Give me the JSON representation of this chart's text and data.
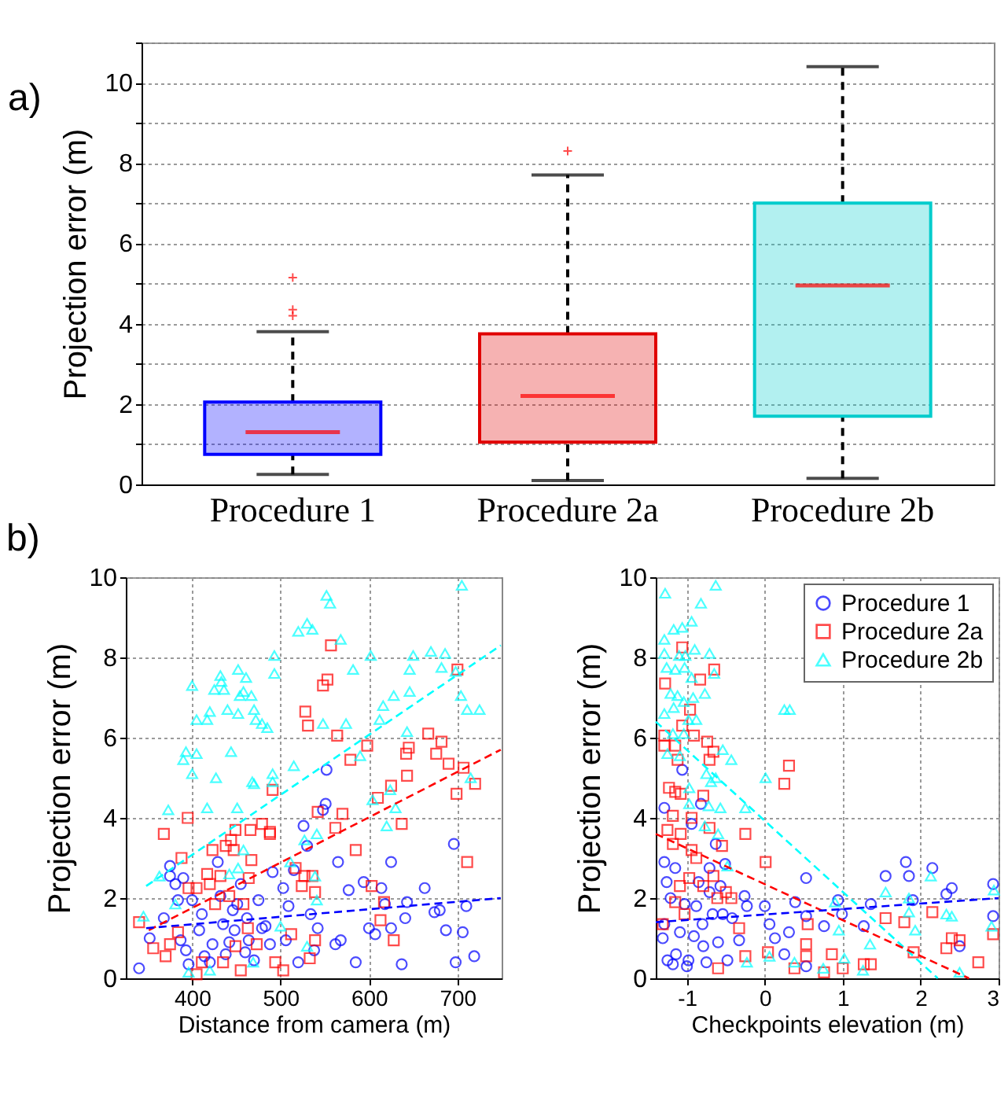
{
  "chart_data": [
    {
      "type": "box",
      "annotations": [
        "a)"
      ],
      "ylabel": "Projection error (m)",
      "categories": [
        "Procedure 1",
        "Procedure 2a",
        "Procedure 2b"
      ],
      "colors": [
        "#0000ff",
        "#e00000",
        "#00cccc"
      ],
      "boxes": [
        {
          "low": 0.25,
          "q1": 0.75,
          "median": 1.3,
          "q3": 2.05,
          "high": 3.8,
          "outliers": [
            4.2,
            4.35,
            5.15
          ]
        },
        {
          "low": 0.1,
          "q1": 1.05,
          "median": 2.2,
          "q3": 3.75,
          "high": 7.7,
          "outliers": [
            8.3
          ]
        },
        {
          "low": 0.15,
          "q1": 1.7,
          "median": 4.95,
          "q3": 7.0,
          "high": 10.4
        }
      ],
      "ylim": [
        0,
        11
      ],
      "yticks": [
        0,
        {
          "value": 1,
          "label": null
        },
        2,
        {
          "value": 3,
          "label": null
        },
        4,
        {
          "value": 5,
          "label": null
        },
        6,
        {
          "value": 7,
          "label": null
        },
        8,
        {
          "value": 9,
          "label": null
        },
        10,
        {
          "value": 11,
          "label": null
        }
      ],
      "grid": "y"
    },
    {
      "type": "scatter",
      "annotations": [
        "b)"
      ],
      "xlabel": "Distance from camera (m)",
      "ylabel": "Projection error (m)",
      "xlim": [
        325,
        750
      ],
      "xticks": [
        400,
        500,
        600,
        700
      ],
      "ylim": [
        0,
        10
      ],
      "yticks": [
        0,
        2,
        4,
        6,
        8,
        10
      ],
      "grid": true,
      "series": [
        {
          "color": "#0000ff",
          "marker": "circle",
          "x": [
            340,
            352,
            368,
            375,
            375,
            381,
            384,
            390,
            387,
            393,
            396,
            400,
            408,
            411,
            414,
            420,
            423,
            429,
            432,
            435,
            438,
            442,
            446,
            448,
            451,
            455,
            460,
            462,
            464,
            470,
            475,
            479,
            483,
            488,
            491,
            503,
            506,
            509,
            515,
            520,
            526,
            530,
            534,
            538,
            542,
            552,
            551,
            548,
            562,
            565,
            568,
            577,
            585,
            594,
            600,
            607,
            614,
            618,
            625,
            625,
            637,
            641,
            643,
            663,
            674,
            680,
            687,
            696,
            698,
            706,
            710,
            719
          ],
          "values": [
            0.25,
            1.0,
            1.5,
            2.8,
            2.55,
            2.35,
            1.95,
            2.5,
            0.95,
            0.7,
            0.35,
            1.95,
            1.2,
            1.6,
            0.55,
            0.4,
            0.85,
            2.9,
            2.05,
            1.35,
            0.6,
            0.9,
            1.7,
            1.2,
            1.85,
            2.35,
            0.65,
            1.5,
            0.95,
            0.45,
            1.95,
            1.25,
            1.3,
            0.85,
            2.65,
            2.25,
            0.95,
            1.8,
            2.7,
            0.4,
            3.8,
            3.3,
            1.6,
            0.7,
            1.25,
            5.2,
            4.35,
            4.2,
            0.85,
            2.9,
            0.95,
            2.2,
            0.4,
            2.4,
            1.25,
            1.1,
            2.25,
            1.85,
            1.25,
            2.9,
            0.35,
            1.5,
            1.9,
            2.25,
            1.65,
            1.7,
            1.2,
            3.35,
            0.4,
            1.15,
            1.8,
            0.55
          ]
        },
        {
          "color": "#ff0000",
          "marker": "square",
          "x": [
            340,
            368,
            370,
            388,
            395,
            356,
            375,
            384,
            396,
            405,
            411,
            405,
            420,
            417,
            423,
            426,
            432,
            438,
            444,
            447,
            449,
            442,
            449,
            435,
            455,
            464,
            467,
            466,
            463,
            458,
            473,
            479,
            488,
            488,
            491,
            494,
            503,
            512,
            517,
            524,
            528,
            531,
            527,
            536,
            539,
            539,
            533,
            542,
            548,
            553,
            557,
            562,
            564,
            570,
            579,
            585,
            598,
            603,
            610,
            613,
            617,
            625,
            628,
            637,
            642,
            643,
            645,
            667,
            676,
            682,
            690,
            699,
            700,
            707,
            711,
            720
          ],
          "values": [
            1.4,
            3.6,
            0.55,
            3.0,
            4.0,
            0.75,
            0.85,
            1.15,
            2.25,
            2.25,
            0.4,
            0.1,
            2.35,
            2.6,
            3.2,
            1.85,
            2.55,
            3.3,
            3.45,
            3.2,
            3.7,
            2.05,
            0.8,
            0.4,
            0.2,
            2.5,
            2.95,
            3.7,
            1.25,
            1.85,
            0.85,
            3.85,
            3.65,
            3.6,
            4.7,
            0.4,
            0.2,
            1.1,
            2.75,
            2.3,
            6.65,
            6.3,
            2.55,
            2.55,
            2.15,
            0.95,
            0.5,
            4.15,
            7.3,
            7.45,
            8.3,
            3.75,
            6.05,
            4.1,
            5.45,
            3.2,
            5.8,
            2.3,
            4.5,
            1.45,
            1.9,
            4.8,
            0.95,
            3.85,
            5.6,
            5.05,
            5.75,
            6.1,
            5.6,
            5.9,
            5.35,
            4.6,
            7.7,
            5.25,
            2.9,
            4.85
          ]
        },
        {
          "color": "#00ffff",
          "marker": "triangle",
          "x": [
            345,
            373,
            390,
            393,
            400,
            400,
            405,
            405,
            417,
            420,
            417,
            427,
            425,
            432,
            433,
            436,
            440,
            444,
            451,
            452,
            454,
            452,
            458,
            461,
            467,
            470,
            472,
            479,
            485,
            468,
            470,
            491,
            493,
            493,
            491,
            515,
            520,
            530,
            536,
            552,
            556,
            548,
            568,
            574,
            582,
            590,
            602,
            612,
            616,
            628,
            624,
            620,
            630,
            646,
            646,
            650,
            643,
            670,
            682,
            686,
            698,
            705,
            704,
            711,
            725,
            715,
            363,
            381,
            396,
            420,
            442,
            452,
            458,
            500,
            511,
            527,
            541,
            541,
            539,
            604,
            469,
            530
          ],
          "values": [
            1.55,
            4.2,
            5.45,
            5.65,
            5.1,
            7.3,
            6.45,
            5.6,
            6.45,
            6.65,
            4.25,
            5.0,
            7.2,
            7.55,
            7.4,
            7.2,
            6.7,
            5.65,
            4.25,
            6.6,
            7.05,
            7.7,
            7.15,
            7.5,
            7.05,
            6.7,
            6.45,
            6.35,
            6.25,
            4.9,
            4.85,
            5.1,
            8.05,
            7.6,
            4.9,
            5.3,
            8.65,
            8.85,
            8.7,
            9.55,
            9.35,
            6.35,
            8.45,
            6.35,
            7.7,
            5.55,
            8.05,
            6.45,
            6.8,
            7.05,
            4.7,
            3.8,
            4.25,
            7.15,
            7.7,
            8.05,
            6.15,
            8.15,
            7.75,
            8.1,
            7.65,
            9.8,
            7.05,
            6.7,
            6.7,
            5.0,
            2.55,
            1.85,
            0.15,
            0.2,
            2.6,
            2.75,
            3.2,
            1.3,
            2.9,
            3.45,
            3.6,
            1.95,
            2.55,
            4.45,
            0.4,
            0.8
          ]
        },
        {
          "type": "line",
          "line_style": "dashed",
          "color": "#00ffff",
          "x": [
            348,
            749
          ],
          "values": [
            2.3,
            8.3
          ]
        },
        {
          "type": "line",
          "line_style": "dashed",
          "color": "#ff0000",
          "x": [
            351,
            749
          ],
          "values": [
            1.2,
            5.7
          ]
        },
        {
          "type": "line",
          "line_style": "dashed",
          "color": "#0000ff",
          "x": [
            348,
            749
          ],
          "values": [
            1.25,
            2.0
          ]
        }
      ]
    },
    {
      "type": "scatter",
      "xlabel": "Checkpoints elevation (m)",
      "ylabel": "Projection error (m)",
      "xlim": [
        -1.4,
        3
      ],
      "xticks": [
        -1,
        0,
        1,
        2,
        3
      ],
      "ylim": [
        0,
        10
      ],
      "yticks": [
        0,
        2,
        4,
        6,
        8,
        10
      ],
      "grid": true,
      "legend": "top right",
      "series": [
        {
          "name": "Procedure 1",
          "color": "#0000ff",
          "marker": "circle",
          "x": [
            -1.29,
            -1.29,
            -1.26,
            -1.21,
            -1.29,
            -1.31,
            -1.25,
            -1.18,
            -1.15,
            -1.14,
            -1.09,
            -1.06,
            -1.03,
            -0.98,
            -1.0,
            -0.94,
            -0.91,
            -0.88,
            -0.85,
            -0.82,
            -0.8,
            -0.79,
            -0.75,
            -0.71,
            -0.71,
            -0.67,
            -0.63,
            -0.6,
            -0.57,
            -0.54,
            -0.51,
            -0.48,
            -0.42,
            -0.33,
            -0.26,
            -0.23,
            0.0,
            0.06,
            0.13,
            0.25,
            0.31,
            0.39,
            0.53,
            0.53,
            0.53,
            0.76,
            0.94,
            0.99,
            1.27,
            1.36,
            1.55,
            1.81,
            1.85,
            1.9,
            2.15,
            2.33,
            2.4,
            2.5,
            2.93,
            2.93
          ],
          "values": [
            4.25,
            2.9,
            2.4,
            2.0,
            1.35,
            1.0,
            0.45,
            0.35,
            2.75,
            0.6,
            1.15,
            5.2,
            1.85,
            0.45,
            0.3,
            3.85,
            1.05,
            1.8,
            2.4,
            4.35,
            1.35,
            0.8,
            0.4,
            2.75,
            2.15,
            1.6,
            3.35,
            0.9,
            2.3,
            1.6,
            2.85,
            0.45,
            1.5,
            0.95,
            2.05,
            1.8,
            1.8,
            1.35,
            1.0,
            0.6,
            1.15,
            1.9,
            2.5,
            1.55,
            0.3,
            1.3,
            1.95,
            1.6,
            1.3,
            1.85,
            2.55,
            2.9,
            2.55,
            1.95,
            2.75,
            2.1,
            2.25,
            0.8,
            1.55,
            2.35
          ]
        },
        {
          "name": "Procedure 2a",
          "color": "#ff0000",
          "marker": "square",
          "x": [
            -1.31,
            -1.29,
            -1.29,
            -1.28,
            -1.23,
            -1.25,
            -1.18,
            -1.15,
            -1.15,
            -1.12,
            -1.06,
            -1.06,
            -1.08,
            -1.08,
            -1.18,
            -1.09,
            -1.15,
            -1.03,
            -0.96,
            -0.91,
            -0.94,
            -0.94,
            -0.97,
            -0.88,
            -0.83,
            -0.79,
            -0.79,
            -0.74,
            -0.71,
            -0.65,
            -0.66,
            -0.71,
            -0.66,
            -0.61,
            -0.55,
            -0.5,
            -0.6,
            -0.43,
            -0.33,
            -0.25,
            -0.25,
            0.01,
            0.04,
            0.25,
            0.31,
            0.38,
            0.53,
            0.53,
            0.55,
            0.76,
            0.86,
            1.0,
            1.27,
            1.36,
            1.55,
            1.79,
            1.91,
            2.15,
            2.33,
            2.4,
            2.5,
            2.74,
            2.93
          ],
          "values": [
            1.35,
            6.05,
            5.8,
            7.35,
            4.75,
            3.7,
            4.05,
            4.65,
            5.8,
            5.45,
            8.25,
            6.3,
            4.6,
            3.6,
            3.35,
            2.3,
            1.9,
            1.6,
            6.7,
            6.05,
            4.0,
            3.2,
            2.5,
            3.0,
            7.45,
            2.3,
            4.55,
            5.9,
            5.45,
            7.7,
            5.65,
            3.75,
            2.55,
            2.0,
            3.3,
            2.15,
            0.25,
            2.0,
            1.25,
            0.55,
            3.6,
            2.9,
            0.65,
            4.85,
            5.3,
            0.25,
            0.55,
            0.85,
            1.35,
            0.15,
            0.6,
            0.25,
            0.35,
            0.35,
            1.5,
            1.4,
            0.65,
            1.65,
            0.75,
            1.0,
            0.95,
            0.4,
            1.1
          ]
        },
        {
          "name": "Procedure 2b",
          "color": "#00ffff",
          "marker": "triangle",
          "x": [
            -1.28,
            -0.63,
            -0.82,
            -1.29,
            -1.17,
            -1.06,
            -0.94,
            -1.29,
            -1.1,
            -0.9,
            -0.71,
            -1.26,
            -1.15,
            -1.03,
            -0.94,
            -1.02,
            -1.21,
            -1.12,
            -0.92,
            -0.77,
            -1.29,
            -1.17,
            -1.04,
            -0.98,
            -0.88,
            -1.18,
            -1.04,
            -1.25,
            -1.09,
            -0.54,
            -0.43,
            -0.75,
            -0.69,
            -0.63,
            -0.97,
            -0.97,
            -0.72,
            -0.57,
            -0.25,
            -0.77,
            0.01,
            0.25,
            0.32,
            -0.65,
            -0.6,
            -0.48,
            -0.23,
            0.06,
            0.38,
            0.75,
            1.02,
            0.95,
            1.26,
            1.35,
            1.55,
            1.85,
            1.85,
            1.93,
            2.13,
            2.33,
            2.4,
            2.5,
            2.91,
            2.94,
            0.9
          ],
          "values": [
            9.6,
            9.8,
            9.35,
            8.45,
            8.7,
            8.75,
            8.9,
            8.1,
            8.05,
            8.2,
            8.1,
            7.75,
            7.7,
            7.75,
            7.5,
            8.05,
            7.1,
            7.05,
            7.0,
            7.1,
            6.6,
            6.75,
            6.9,
            6.45,
            6.45,
            6.1,
            6.1,
            5.6,
            5.55,
            5.7,
            5.45,
            5.1,
            4.9,
            5.0,
            4.75,
            4.35,
            4.3,
            4.25,
            4.25,
            3.8,
            5.0,
            6.7,
            6.7,
            7.6,
            3.6,
            2.8,
            0.4,
            0.55,
            0.4,
            0.25,
            0.5,
            1.2,
            0.2,
            0.85,
            2.15,
            2.0,
            1.65,
            1.2,
            2.55,
            1.6,
            1.55,
            0.15,
            1.3,
            2.2,
            1.9
          ]
        },
        {
          "type": "line",
          "line_style": "dashed",
          "color": "#00ffff",
          "x": [
            -1.4,
            2.22
          ],
          "values": [
            6.4,
            0
          ]
        },
        {
          "type": "line",
          "line_style": "dashed",
          "color": "#ff0000",
          "x": [
            -1.4,
            2.62
          ],
          "values": [
            3.6,
            0
          ]
        },
        {
          "type": "line",
          "line_style": "dashed",
          "color": "#0000ff",
          "x": [
            -1.4,
            3
          ],
          "values": [
            1.4,
            2.0
          ]
        }
      ]
    }
  ]
}
